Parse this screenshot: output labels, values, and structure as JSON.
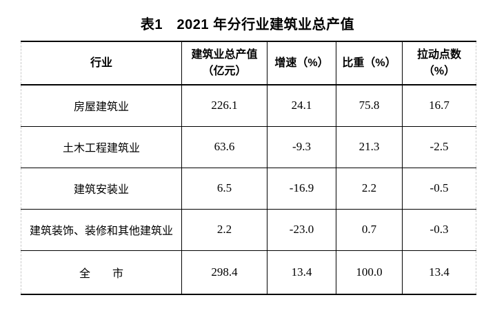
{
  "title": "表1　2021 年分行业建筑业总产值",
  "table": {
    "columns": [
      {
        "label": "行业",
        "label2": ""
      },
      {
        "label": "建筑业总产值",
        "label2": "（亿元）"
      },
      {
        "label": "增速（%）",
        "label2": ""
      },
      {
        "label": "比重（%）",
        "label2": ""
      },
      {
        "label": "拉动点数",
        "label2": "（%）"
      }
    ],
    "rows": [
      {
        "industry": "房屋建筑业",
        "output": "226.1",
        "growth": "24.1",
        "share": "75.8",
        "pull": "16.7"
      },
      {
        "industry": "土木工程建筑业",
        "output": "63.6",
        "growth": "-9.3",
        "share": "21.3",
        "pull": "-2.5"
      },
      {
        "industry": "建筑安装业",
        "output": "6.5",
        "growth": "-16.9",
        "share": "2.2",
        "pull": "-0.5"
      },
      {
        "industry": "建筑装饰、装修和其他建筑业",
        "output": "2.2",
        "growth": "-23.0",
        "share": "0.7",
        "pull": "-0.3"
      },
      {
        "industry": "全　　市",
        "output": "298.4",
        "growth": "13.4",
        "share": "100.0",
        "pull": "13.4"
      }
    ]
  },
  "colors": {
    "text": "#000000",
    "border": "#000000",
    "edge_guide": "#c9c9c9",
    "background": "#ffffff"
  }
}
